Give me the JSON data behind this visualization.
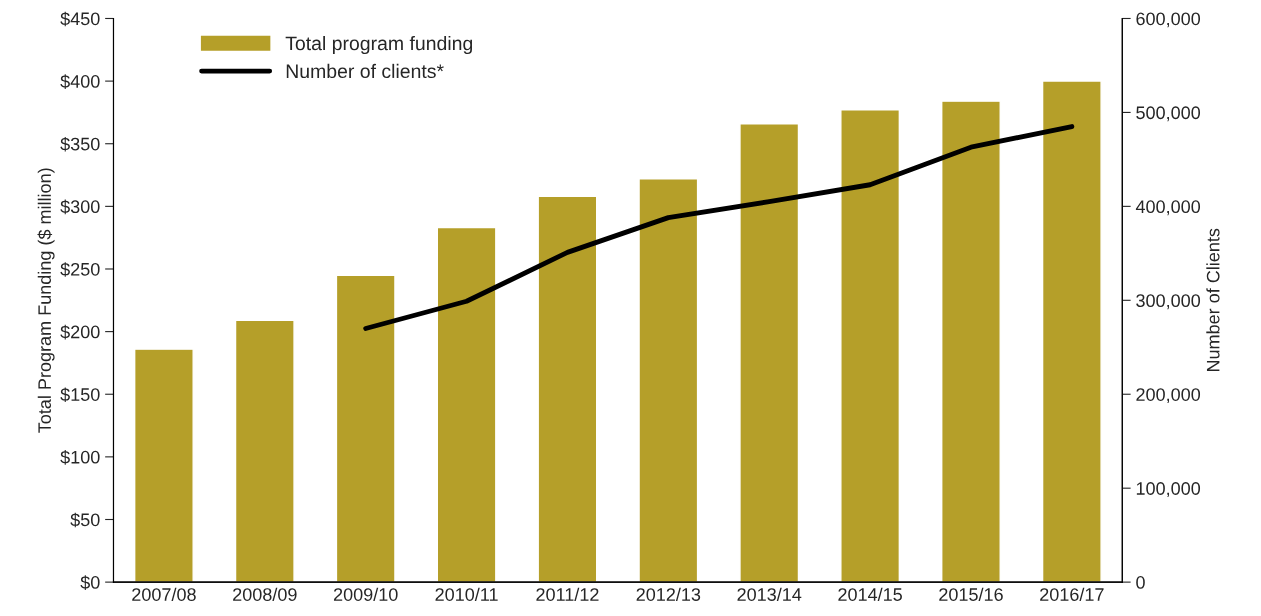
{
  "chart_data": {
    "type": "bar",
    "categories": [
      "2007/08",
      "2008/09",
      "2009/10",
      "2010/11",
      "2011/12",
      "2012/13",
      "2013/14",
      "2014/15",
      "2015/16",
      "2016/17"
    ],
    "series": [
      {
        "name": "Total program funding",
        "color": "#b59f29",
        "values": [
          186,
          209,
          245,
          283,
          308,
          322,
          366,
          377,
          384,
          400
        ]
      },
      {
        "name": "Number of clients*",
        "type": "line",
        "axis": "y2",
        "color": "#000000",
        "values": [
          null,
          null,
          270000,
          299000,
          351000,
          388000,
          405000,
          423000,
          463000,
          485000
        ]
      }
    ],
    "ylabel": "Total Program Funding ($ million)",
    "y2label": "Number of Clients",
    "ylim": [
      0,
      450
    ],
    "yticks": [
      {
        "value": 0,
        "label": "$0"
      },
      {
        "value": 50,
        "label": "$50"
      },
      {
        "value": 100,
        "label": "$100"
      },
      {
        "value": 150,
        "label": "$150"
      },
      {
        "value": 200,
        "label": "$200"
      },
      {
        "value": 250,
        "label": "$250"
      },
      {
        "value": 300,
        "label": "$300"
      },
      {
        "value": 350,
        "label": "$350"
      },
      {
        "value": 400,
        "label": "$400"
      },
      {
        "value": 450,
        "label": "$450"
      }
    ],
    "y2lim": [
      0,
      600000
    ],
    "y2ticks": [
      0,
      {
        "value": 100000,
        "label": "100,000"
      },
      {
        "value": 200000,
        "label": "200,000"
      },
      {
        "value": 300000,
        "label": "300,000"
      },
      {
        "value": 400000,
        "label": "400,000"
      },
      {
        "value": 500000,
        "label": "500,000"
      },
      {
        "value": 600000,
        "label": "600,000"
      }
    ],
    "legend": "top left",
    "grid": false,
    "marker": "none",
    "line_style": "solid"
  }
}
